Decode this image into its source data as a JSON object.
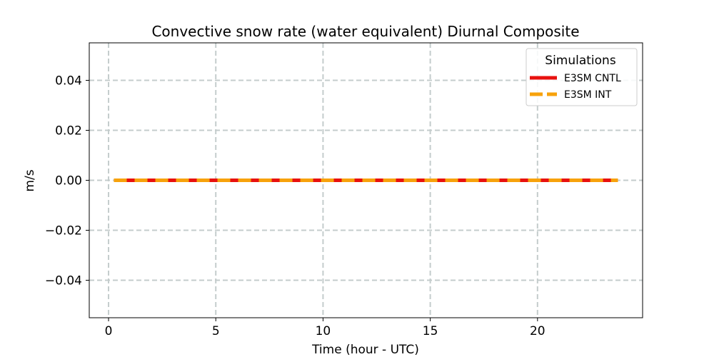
{
  "chart_data": {
    "type": "line",
    "title": "Convective snow rate (water equivalent) Diurnal Composite",
    "xlabel": "Time (hour - UTC)",
    "ylabel": "m/s",
    "xlim": [
      -0.9,
      24.9
    ],
    "ylim": [
      -0.055,
      0.055
    ],
    "xticks": [
      0,
      5,
      10,
      15,
      20
    ],
    "xtick_labels": [
      "0",
      "5",
      "10",
      "15",
      "20"
    ],
    "yticks": [
      0.04,
      0.02,
      0.0,
      -0.02,
      -0.04
    ],
    "ytick_labels": [
      "0.04",
      "0.02",
      "0.00",
      "−0.02",
      "−0.04"
    ],
    "grid": true,
    "legend": {
      "title": "Simulations",
      "placement": "top-right"
    },
    "x": [
      0.25,
      0.75,
      1.25,
      1.75,
      2.25,
      2.75,
      3.25,
      3.75,
      4.25,
      4.75,
      5.25,
      5.75,
      6.25,
      6.75,
      7.25,
      7.75,
      8.25,
      8.75,
      9.25,
      9.75,
      10.25,
      10.75,
      11.25,
      11.75,
      12.25,
      12.75,
      13.25,
      13.75,
      14.25,
      14.75,
      15.25,
      15.75,
      16.25,
      16.75,
      17.25,
      17.75,
      18.25,
      18.75,
      19.25,
      19.75,
      20.25,
      20.75,
      21.25,
      21.75,
      22.25,
      22.75,
      23.25,
      23.75
    ],
    "series": [
      {
        "name": "E3SM CNTL",
        "color": "#e8110f",
        "style": "solid",
        "values": [
          0,
          0,
          0,
          0,
          0,
          0,
          0,
          0,
          0,
          0,
          0,
          0,
          0,
          0,
          0,
          0,
          0,
          0,
          0,
          0,
          0,
          0,
          0,
          0,
          0,
          0,
          0,
          0,
          0,
          0,
          0,
          0,
          0,
          0,
          0,
          0,
          0,
          0,
          0,
          0,
          0,
          0,
          0,
          0,
          0,
          0,
          0,
          0
        ]
      },
      {
        "name": "E3SM INT",
        "color": "#f7a20b",
        "style": "dashed",
        "values": [
          0,
          0,
          0,
          0,
          0,
          0,
          0,
          0,
          0,
          0,
          0,
          0,
          0,
          0,
          0,
          0,
          0,
          0,
          0,
          0,
          0,
          0,
          0,
          0,
          0,
          0,
          0,
          0,
          0,
          0,
          0,
          0,
          0,
          0,
          0,
          0,
          0,
          0,
          0,
          0,
          0,
          0,
          0,
          0,
          0,
          0,
          0,
          0
        ]
      }
    ]
  }
}
